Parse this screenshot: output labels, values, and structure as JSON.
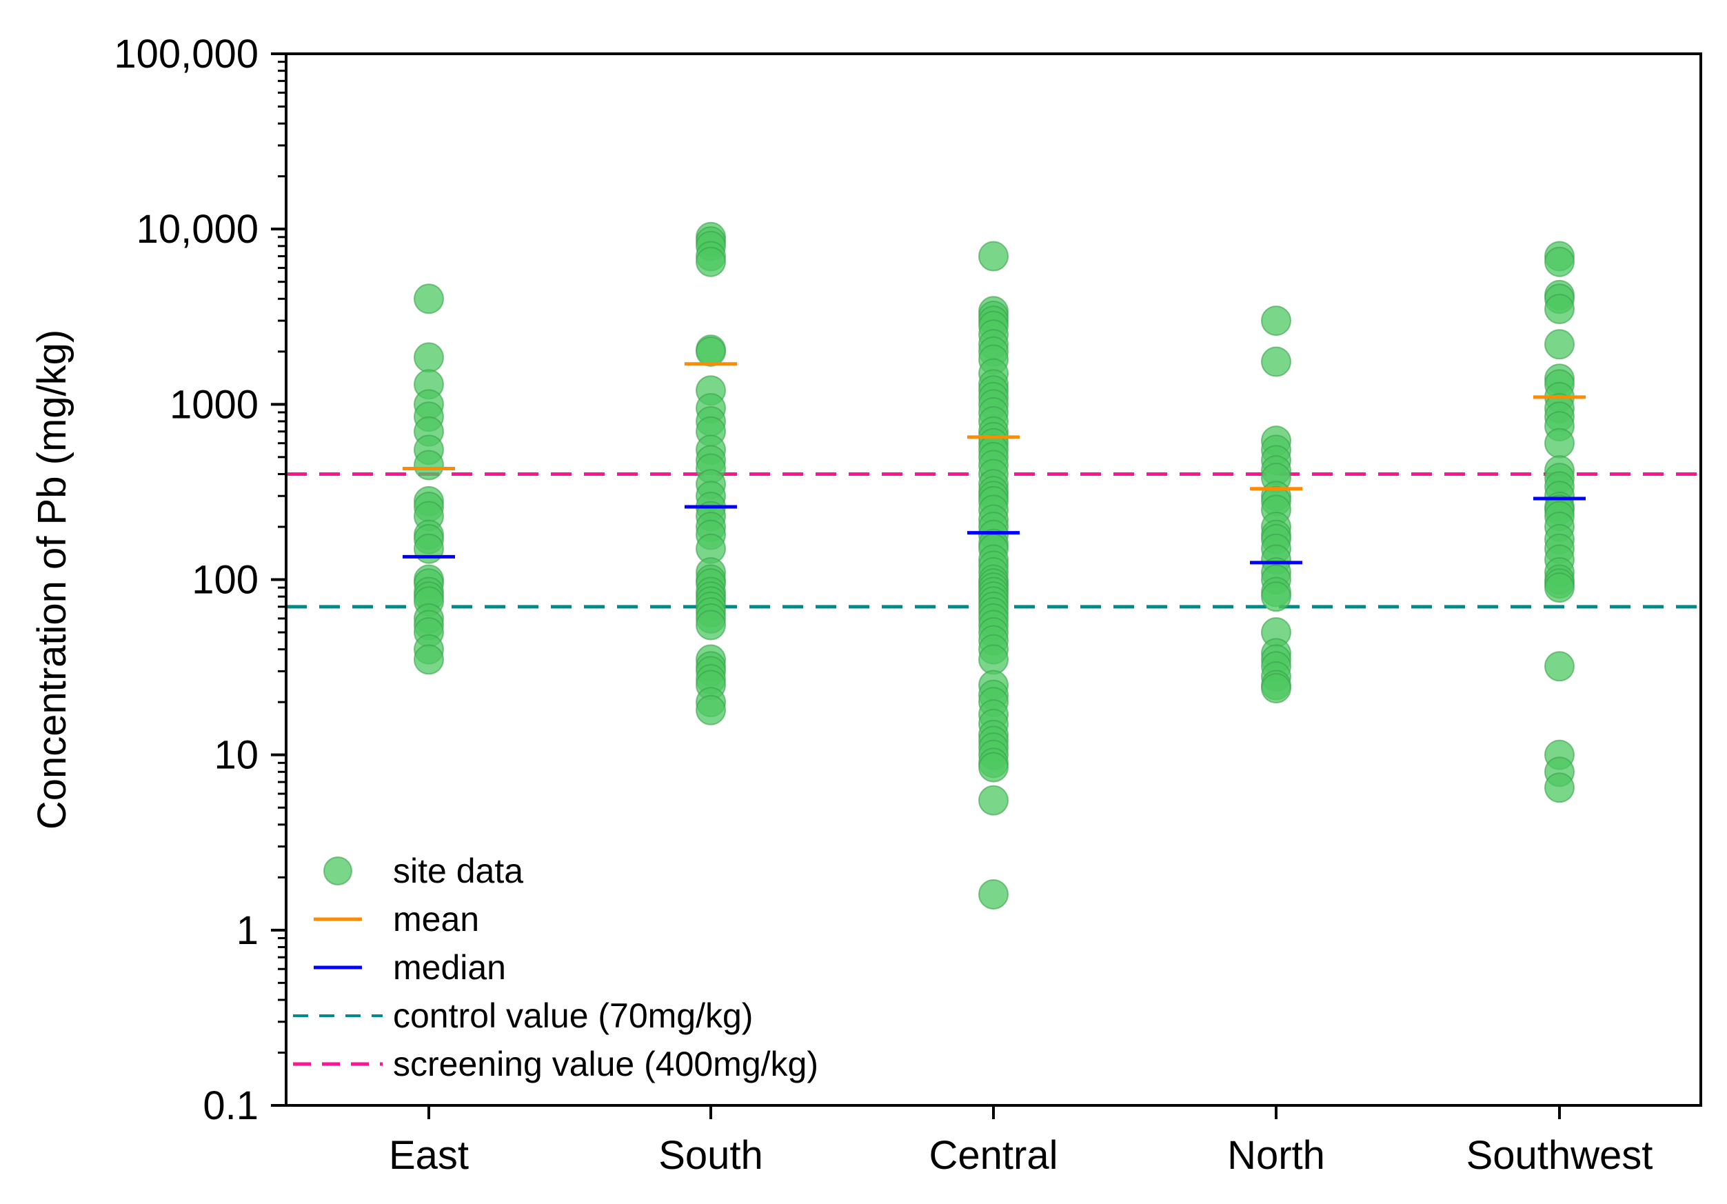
{
  "chart_data": {
    "type": "scatter",
    "title": "",
    "xlabel": "",
    "ylabel": "Concentration of Pb (mg/kg)",
    "yscale": "log",
    "ylim": [
      0.1,
      100000
    ],
    "yticks": [
      0.1,
      1,
      10,
      100,
      1000,
      10000,
      100000
    ],
    "ytick_labels": [
      "0.1",
      "1",
      "10",
      "100",
      "1000",
      "10,000",
      "100,000"
    ],
    "categories": [
      "East",
      "South",
      "Central",
      "North",
      "Southwest"
    ],
    "colors": {
      "site_data": "#4dc860",
      "site_data_edge": "#3aa04c",
      "mean": "#ff8c00",
      "median": "#0000ff",
      "control": "#008b8b",
      "screening": "#ff1493"
    },
    "series": [
      {
        "name": "site data",
        "values": [
          [
            4000,
            1850,
            1300,
            1000,
            850,
            700,
            550,
            450,
            280,
            260,
            230,
            180,
            170,
            150,
            100,
            95,
            85,
            80,
            75,
            60,
            55,
            50,
            40,
            35
          ],
          [
            9000,
            8500,
            8000,
            7000,
            6500,
            2050,
            2000,
            1200,
            950,
            800,
            700,
            550,
            480,
            430,
            350,
            300,
            260,
            230,
            200,
            180,
            150,
            110,
            100,
            95,
            85,
            80,
            75,
            70,
            65,
            60,
            55,
            35,
            32,
            30,
            27,
            25,
            20,
            18
          ],
          [
            7000,
            3400,
            3200,
            3000,
            2800,
            2500,
            2200,
            2000,
            1800,
            1500,
            1300,
            1200,
            1100,
            1000,
            900,
            800,
            700,
            650,
            600,
            550,
            500,
            450,
            400,
            350,
            320,
            300,
            280,
            250,
            220,
            200,
            180,
            160,
            150,
            130,
            120,
            110,
            100,
            95,
            90,
            85,
            80,
            75,
            70,
            65,
            60,
            55,
            50,
            45,
            40,
            35,
            25,
            22,
            20,
            17,
            15,
            13,
            12,
            11,
            10,
            9,
            8.5,
            5.5,
            1.6
          ],
          [
            3000,
            1750,
            620,
            550,
            480,
            420,
            380,
            300,
            280,
            250,
            200,
            180,
            170,
            150,
            130,
            110,
            100,
            85,
            80,
            50,
            38,
            35,
            32,
            28,
            25,
            24
          ],
          [
            7000,
            6500,
            4200,
            4000,
            3500,
            2200,
            1400,
            1300,
            1100,
            950,
            850,
            750,
            600,
            420,
            380,
            340,
            300,
            260,
            250,
            230,
            200,
            170,
            150,
            130,
            110,
            100,
            95,
            90,
            32,
            10,
            8,
            6.5
          ]
        ]
      },
      {
        "name": "mean",
        "values": [
          430,
          1700,
          650,
          330,
          1100
        ]
      },
      {
        "name": "median",
        "values": [
          135,
          260,
          185,
          125,
          290
        ]
      }
    ],
    "reference_lines": [
      {
        "name": "control value (70mg/kg)",
        "value": 70
      },
      {
        "name": "screening value (400mg/kg)",
        "value": 400
      }
    ],
    "legend": {
      "position": "bottom-left",
      "entries": [
        "site data",
        "mean",
        "median",
        "control value (70mg/kg)",
        "screening value (400mg/kg)"
      ]
    }
  }
}
